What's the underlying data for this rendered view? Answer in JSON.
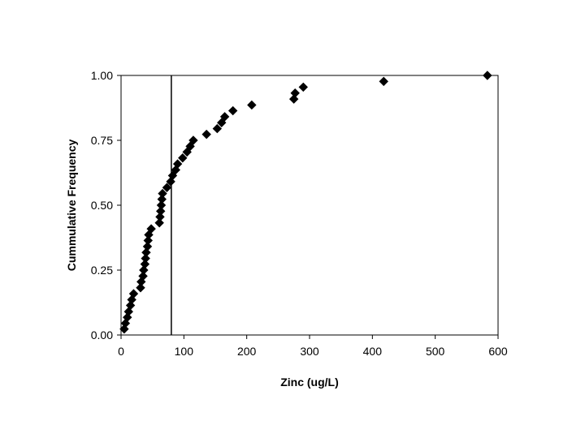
{
  "chart_data": {
    "type": "scatter",
    "title": "",
    "xlabel": "Zinc (ug/L)",
    "ylabel": "Cummulative Frequency",
    "xlim": [
      0,
      600
    ],
    "ylim": [
      0,
      1
    ],
    "x_ticks": [
      "0",
      "100",
      "200",
      "300",
      "400",
      "500",
      "600"
    ],
    "y_ticks": [
      "0.00",
      "0.25",
      "0.50",
      "0.75",
      "1.00"
    ],
    "grid": false,
    "legend": "none",
    "marker": "diamond",
    "marker_color": "#000000",
    "reference_line": {
      "orientation": "vertical",
      "x": 80
    },
    "series": [
      {
        "points": [
          [
            5,
            0.023
          ],
          [
            7,
            0.045
          ],
          [
            10,
            0.068
          ],
          [
            12,
            0.09
          ],
          [
            15,
            0.114
          ],
          [
            17,
            0.136
          ],
          [
            20,
            0.159
          ],
          [
            31,
            0.182
          ],
          [
            32,
            0.205
          ],
          [
            35,
            0.227
          ],
          [
            36,
            0.25
          ],
          [
            38,
            0.273
          ],
          [
            39,
            0.295
          ],
          [
            40,
            0.318
          ],
          [
            42,
            0.341
          ],
          [
            43,
            0.364
          ],
          [
            44,
            0.386
          ],
          [
            48,
            0.409
          ],
          [
            61,
            0.432
          ],
          [
            62,
            0.455
          ],
          [
            63,
            0.477
          ],
          [
            64,
            0.5
          ],
          [
            65,
            0.523
          ],
          [
            66,
            0.545
          ],
          [
            73,
            0.568
          ],
          [
            79,
            0.591
          ],
          [
            82,
            0.614
          ],
          [
            87,
            0.636
          ],
          [
            90,
            0.659
          ],
          [
            98,
            0.682
          ],
          [
            105,
            0.705
          ],
          [
            110,
            0.727
          ],
          [
            115,
            0.75
          ],
          [
            136,
            0.773
          ],
          [
            153,
            0.795
          ],
          [
            160,
            0.818
          ],
          [
            165,
            0.841
          ],
          [
            178,
            0.864
          ],
          [
            208,
            0.886
          ],
          [
            275,
            0.909
          ],
          [
            277,
            0.932
          ],
          [
            290,
            0.955
          ],
          [
            418,
            0.977
          ],
          [
            583,
            1.0
          ]
        ]
      }
    ]
  }
}
